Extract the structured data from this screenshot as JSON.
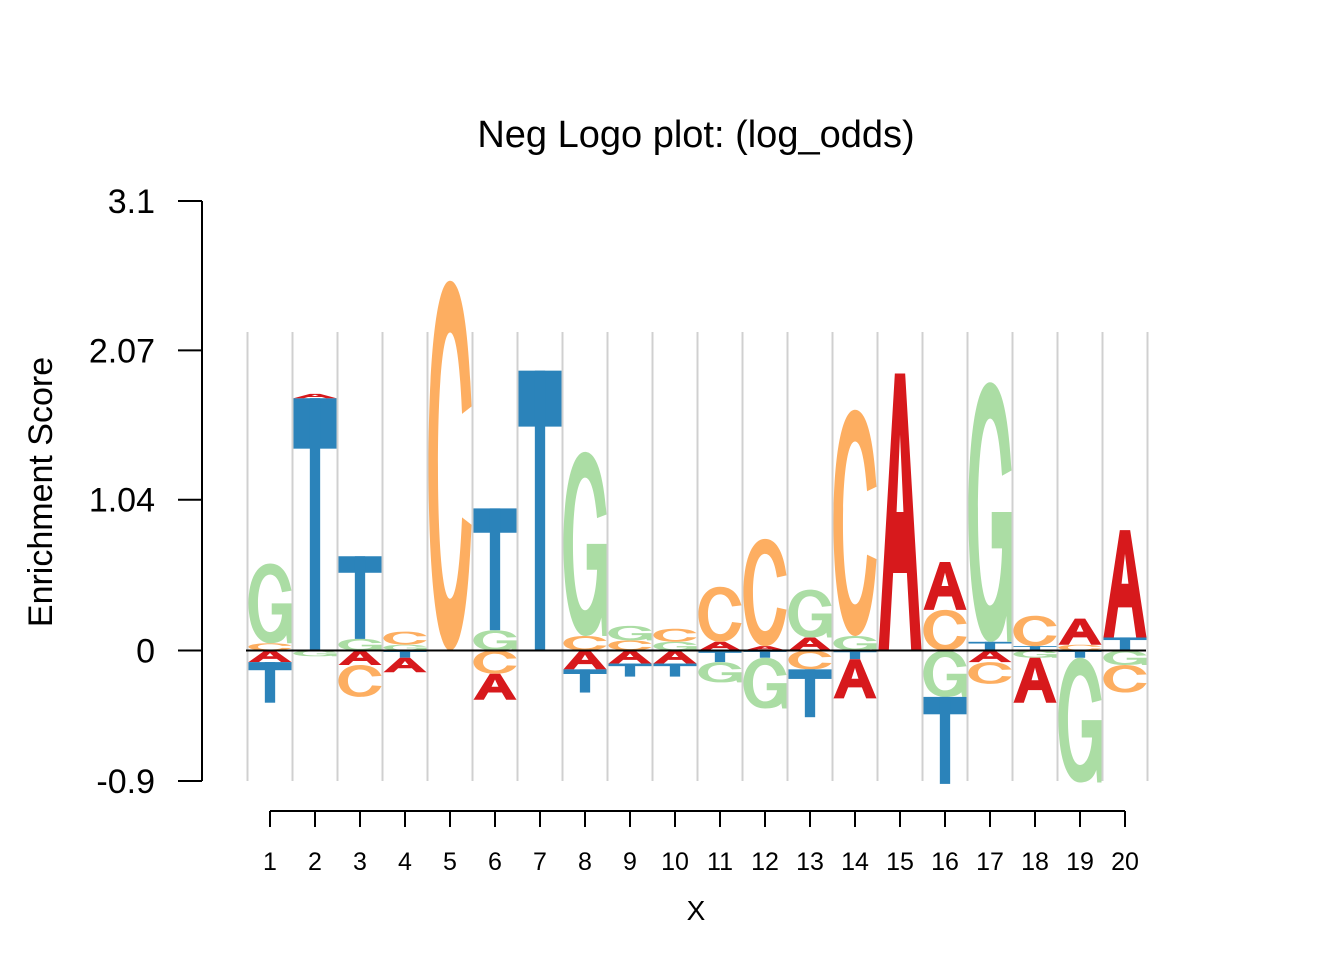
{
  "chart_data": {
    "type": "sequence-logo",
    "title": "Neg Logo plot: (log_odds)",
    "xlabel": "X",
    "ylabel": "Enrichment Score",
    "ylim": [
      -0.9,
      3.1
    ],
    "y_ticks": [
      "3.1",
      "2.07",
      "1.04",
      "0",
      "-0.9"
    ],
    "x_ticks": [
      "1",
      "2",
      "3",
      "4",
      "5",
      "6",
      "7",
      "8",
      "9",
      "10",
      "11",
      "12",
      "13",
      "14",
      "15",
      "16",
      "17",
      "18",
      "19",
      "20"
    ],
    "colors": {
      "A": "#d7191c",
      "C": "#fdae61",
      "G": "#abdda4",
      "T": "#2b83ba"
    },
    "positions": [
      {
        "pos": 1,
        "pos_stack": [
          [
            "C",
            0.05
          ],
          [
            "G",
            0.55
          ]
        ],
        "neg_stack": [
          [
            "A",
            0.08
          ],
          [
            "T",
            0.28
          ]
        ]
      },
      {
        "pos": 2,
        "pos_stack": [
          [
            "T",
            1.74
          ],
          [
            "A",
            0.03
          ]
        ],
        "neg_stack": [
          [
            "G",
            0.04
          ]
        ]
      },
      {
        "pos": 3,
        "pos_stack": [
          [
            "G",
            0.08
          ],
          [
            "T",
            0.57
          ]
        ],
        "neg_stack": [
          [
            "A",
            0.1
          ],
          [
            "C",
            0.22
          ]
        ]
      },
      {
        "pos": 4,
        "pos_stack": [
          [
            "G",
            0.04
          ],
          [
            "C",
            0.09
          ]
        ],
        "neg_stack": [
          [
            "T",
            0.05
          ],
          [
            "A",
            0.1
          ]
        ]
      },
      {
        "pos": 5,
        "pos_stack": [
          [
            "C",
            2.55
          ]
        ],
        "neg_stack": []
      },
      {
        "pos": 6,
        "pos_stack": [
          [
            "G",
            0.14
          ],
          [
            "T",
            0.84
          ]
        ],
        "neg_stack": [
          [
            "C",
            0.16
          ],
          [
            "A",
            0.18
          ]
        ]
      },
      {
        "pos": 7,
        "pos_stack": [
          [
            "T",
            1.93
          ]
        ],
        "neg_stack": []
      },
      {
        "pos": 8,
        "pos_stack": [
          [
            "C",
            0.1
          ],
          [
            "G",
            1.27
          ]
        ],
        "neg_stack": [
          [
            "A",
            0.13
          ],
          [
            "T",
            0.16
          ]
        ]
      },
      {
        "pos": 9,
        "pos_stack": [
          [
            "C",
            0.07
          ],
          [
            "G",
            0.1
          ]
        ],
        "neg_stack": [
          [
            "A",
            0.09
          ],
          [
            "T",
            0.09
          ]
        ]
      },
      {
        "pos": 10,
        "pos_stack": [
          [
            "G",
            0.06
          ],
          [
            "C",
            0.09
          ]
        ],
        "neg_stack": [
          [
            "A",
            0.09
          ],
          [
            "T",
            0.09
          ]
        ]
      },
      {
        "pos": 11,
        "pos_stack": [
          [
            "A",
            0.06
          ],
          [
            "C",
            0.38
          ]
        ],
        "neg_stack": [
          [
            "T",
            0.08
          ],
          [
            "G",
            0.14
          ]
        ]
      },
      {
        "pos": 12,
        "pos_stack": [
          [
            "A",
            0.03
          ],
          [
            "C",
            0.74
          ]
        ],
        "neg_stack": [
          [
            "T",
            0.05
          ],
          [
            "G",
            0.35
          ]
        ]
      },
      {
        "pos": 13,
        "pos_stack": [
          [
            "A",
            0.09
          ],
          [
            "G",
            0.33
          ]
        ],
        "neg_stack": [
          [
            "C",
            0.13
          ],
          [
            "T",
            0.33
          ]
        ]
      },
      {
        "pos": 14,
        "pos_stack": [
          [
            "G",
            0.1
          ],
          [
            "C",
            1.56
          ]
        ],
        "neg_stack": [
          [
            "T",
            0.06
          ],
          [
            "A",
            0.27
          ]
        ]
      },
      {
        "pos": 15,
        "pos_stack": [
          [
            "A",
            1.91
          ]
        ],
        "neg_stack": []
      },
      {
        "pos": 16,
        "pos_stack": [
          [
            "C",
            0.28
          ],
          [
            "A",
            0.33
          ]
        ],
        "neg_stack": [
          [
            "G",
            0.32
          ],
          [
            "T",
            0.6
          ]
        ]
      },
      {
        "pos": 17,
        "pos_stack": [
          [
            "T",
            0.06
          ],
          [
            "G",
            1.79
          ]
        ],
        "neg_stack": [
          [
            "A",
            0.08
          ],
          [
            "C",
            0.15
          ]
        ]
      },
      {
        "pos": 18,
        "pos_stack": [
          [
            "T",
            0.03
          ],
          [
            "C",
            0.21
          ]
        ],
        "neg_stack": [
          [
            "G",
            0.05
          ],
          [
            "A",
            0.31
          ]
        ]
      },
      {
        "pos": 19,
        "pos_stack": [
          [
            "C",
            0.04
          ],
          [
            "A",
            0.18
          ]
        ],
        "neg_stack": [
          [
            "T",
            0.05
          ],
          [
            "G",
            0.86
          ]
        ]
      },
      {
        "pos": 20,
        "pos_stack": [
          [
            "T",
            0.09
          ],
          [
            "A",
            0.74
          ]
        ],
        "neg_stack": [
          [
            "G",
            0.1
          ],
          [
            "C",
            0.19
          ]
        ]
      }
    ]
  }
}
